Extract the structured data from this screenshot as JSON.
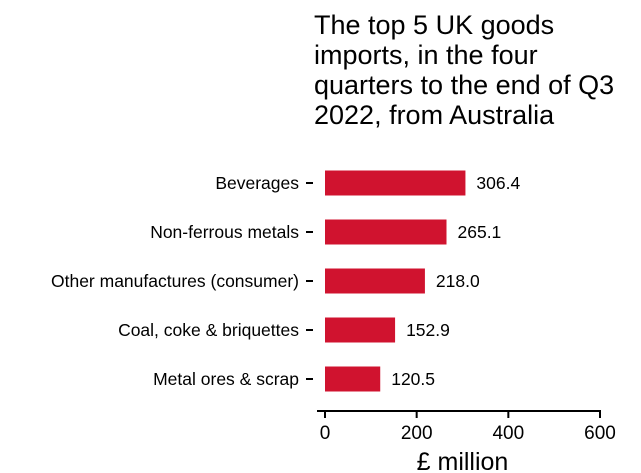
{
  "chart_data": {
    "type": "bar",
    "orientation": "horizontal",
    "title": "The top 5 UK goods imports, in the four quarters to the end of Q3 2022, from Australia",
    "title_lines": [
      "The top 5 UK goods",
      "imports, in the four",
      "quarters to the end of Q3",
      "2022, from Australia"
    ],
    "categories": [
      "Beverages",
      "Non-ferrous metals",
      "Other manufactures (consumer)",
      "Coal, coke & briquettes",
      "Metal ores & scrap"
    ],
    "values": [
      306.4,
      265.1,
      218.0,
      152.9,
      120.5
    ],
    "value_labels": [
      "306.4",
      "265.1",
      "218.0",
      "152.9",
      "120.5"
    ],
    "xlabel": "£ million",
    "ylabel": "",
    "xlim": [
      0,
      600
    ],
    "xticks": [
      0,
      200,
      400,
      600
    ],
    "bar_color": "#d0132f",
    "grid": false,
    "legend": "none"
  }
}
